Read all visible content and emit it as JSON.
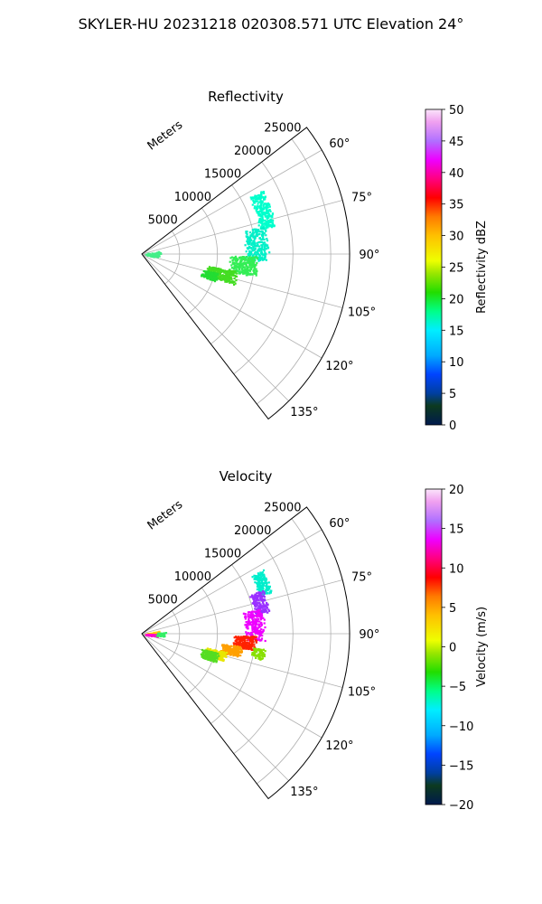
{
  "figure": {
    "suptitle": "SKYLER-HU  20231218  020308.571 UTC Elevation 24°"
  },
  "chart_data": [
    {
      "type": "polar-sector",
      "title": "Reflectivity",
      "radial_label": "Meters",
      "radial_ticks": [
        5000,
        10000,
        15000,
        20000,
        25000
      ],
      "radial_tick_labels": [
        "5000",
        "10000",
        "15000",
        "20000",
        "25000"
      ],
      "rmax": 27500,
      "theta_range_deg": [
        52.5,
        142.5
      ],
      "theta_ticks": [
        60,
        75,
        90,
        105,
        120,
        135
      ],
      "theta_tick_labels": [
        "60°",
        "75°",
        "90°",
        "105°",
        "120°",
        "135°"
      ],
      "grid": true,
      "colorbar": {
        "label": "Reflectivity dBZ",
        "range": [
          0,
          50
        ],
        "ticks": [
          0,
          5,
          10,
          15,
          20,
          25,
          30,
          35,
          40,
          45,
          50
        ],
        "tick_labels": [
          "0",
          "5",
          "10",
          "15",
          "20",
          "25",
          "30",
          "35",
          "40",
          "45",
          "50"
        ],
        "stops": [
          [
            0,
            "#001a4d"
          ],
          [
            0.06,
            "#0c3a1f"
          ],
          [
            0.1,
            "#003fa0"
          ],
          [
            0.16,
            "#0044ff"
          ],
          [
            0.22,
            "#00aaff"
          ],
          [
            0.3,
            "#00eeff"
          ],
          [
            0.36,
            "#00ff88"
          ],
          [
            0.42,
            "#22dd00"
          ],
          [
            0.48,
            "#99e600"
          ],
          [
            0.52,
            "#eeff00"
          ],
          [
            0.6,
            "#ffc000"
          ],
          [
            0.66,
            "#ff7a00"
          ],
          [
            0.72,
            "#ff0000"
          ],
          [
            0.78,
            "#ff0080"
          ],
          [
            0.84,
            "#ee00ff"
          ],
          [
            0.9,
            "#b070ff"
          ],
          [
            0.96,
            "#f0a0f0"
          ],
          [
            1.0,
            "#fbe6fb"
          ]
        ]
      },
      "echo_regions": [
        {
          "az": [
            62,
            78
          ],
          "range_m": [
            15800,
            18200
          ],
          "color": "#00ffcc",
          "points": 260
        },
        {
          "az": [
            77,
            93
          ],
          "range_m": [
            13500,
            16800
          ],
          "color": "#00f0c8",
          "points": 260
        },
        {
          "az": [
            91,
            101
          ],
          "range_m": [
            11500,
            15500
          ],
          "color": "#33ee55",
          "points": 250
        },
        {
          "az": [
            100,
            108
          ],
          "range_m": [
            8500,
            13000
          ],
          "color": "#44dd22",
          "points": 260
        },
        {
          "az": [
            104,
            110
          ],
          "range_m": [
            8000,
            10500
          ],
          "color": "#22dd33",
          "points": 110
        },
        {
          "az": [
            78,
            101
          ],
          "range_m": [
            300,
            2600
          ],
          "color": "#44ee88",
          "points": 80
        }
      ]
    },
    {
      "type": "polar-sector",
      "title": "Velocity",
      "radial_label": "Meters",
      "radial_ticks": [
        5000,
        10000,
        15000,
        20000,
        25000
      ],
      "radial_tick_labels": [
        "5000",
        "10000",
        "15000",
        "20000",
        "25000"
      ],
      "rmax": 27500,
      "theta_range_deg": [
        52.5,
        142.5
      ],
      "theta_ticks": [
        60,
        75,
        90,
        105,
        120,
        135
      ],
      "theta_tick_labels": [
        "60°",
        "75°",
        "90°",
        "105°",
        "120°",
        "135°"
      ],
      "grid": true,
      "colorbar": {
        "label": "Velocity (m/s)",
        "range": [
          -20,
          20
        ],
        "ticks": [
          -20,
          -15,
          -10,
          -5,
          0,
          5,
          10,
          15,
          20
        ],
        "tick_labels": [
          "−20",
          "−15",
          "−10",
          "−5",
          "0",
          "5",
          "10",
          "15",
          "20"
        ],
        "stops": [
          [
            0,
            "#001a4d"
          ],
          [
            0.06,
            "#0c3a1f"
          ],
          [
            0.1,
            "#003fa0"
          ],
          [
            0.16,
            "#0044ff"
          ],
          [
            0.22,
            "#00aaff"
          ],
          [
            0.3,
            "#00eeff"
          ],
          [
            0.36,
            "#00ff88"
          ],
          [
            0.42,
            "#22dd00"
          ],
          [
            0.48,
            "#99e600"
          ],
          [
            0.52,
            "#eeff00"
          ],
          [
            0.6,
            "#ffc000"
          ],
          [
            0.66,
            "#ff7a00"
          ],
          [
            0.72,
            "#ff0000"
          ],
          [
            0.78,
            "#ff0080"
          ],
          [
            0.84,
            "#ee00ff"
          ],
          [
            0.9,
            "#b070ff"
          ],
          [
            0.96,
            "#f0a0f0"
          ],
          [
            1.0,
            "#fbe6fb"
          ]
        ]
      },
      "echo_regions": [
        {
          "az": [
            62,
            72
          ],
          "range_m": [
            16200,
            18200
          ],
          "color": "#00eecc",
          "points": 160
        },
        {
          "az": [
            70,
            80
          ],
          "range_m": [
            15000,
            17200
          ],
          "color": "#9930ff",
          "points": 160
        },
        {
          "az": [
            78,
            93
          ],
          "range_m": [
            13500,
            16300
          ],
          "color": "#ee00ff",
          "points": 220
        },
        {
          "az": [
            91,
            98
          ],
          "range_m": [
            12000,
            15200
          ],
          "color": "#ff2200",
          "points": 220
        },
        {
          "az": [
            97,
            103
          ],
          "range_m": [
            10500,
            13500
          ],
          "color": "#ffa000",
          "points": 220
        },
        {
          "az": [
            102,
            108
          ],
          "range_m": [
            8500,
            11500
          ],
          "color": "#e8e600",
          "points": 200
        },
        {
          "az": [
            104,
            111
          ],
          "range_m": [
            8000,
            10500
          ],
          "color": "#55dd22",
          "points": 200
        },
        {
          "az": [
            97,
            102
          ],
          "range_m": [
            14500,
            16500
          ],
          "color": "#88e000",
          "points": 70
        },
        {
          "az": [
            80,
            92
          ],
          "range_m": [
            300,
            2400
          ],
          "color": "#ffcc00",
          "points": 45
        },
        {
          "az": [
            90,
            100
          ],
          "range_m": [
            300,
            2400
          ],
          "color": "#ff00cc",
          "points": 45
        },
        {
          "az": [
            85,
            96
          ],
          "range_m": [
            1800,
            3200
          ],
          "color": "#33ee66",
          "points": 35
        }
      ]
    }
  ]
}
